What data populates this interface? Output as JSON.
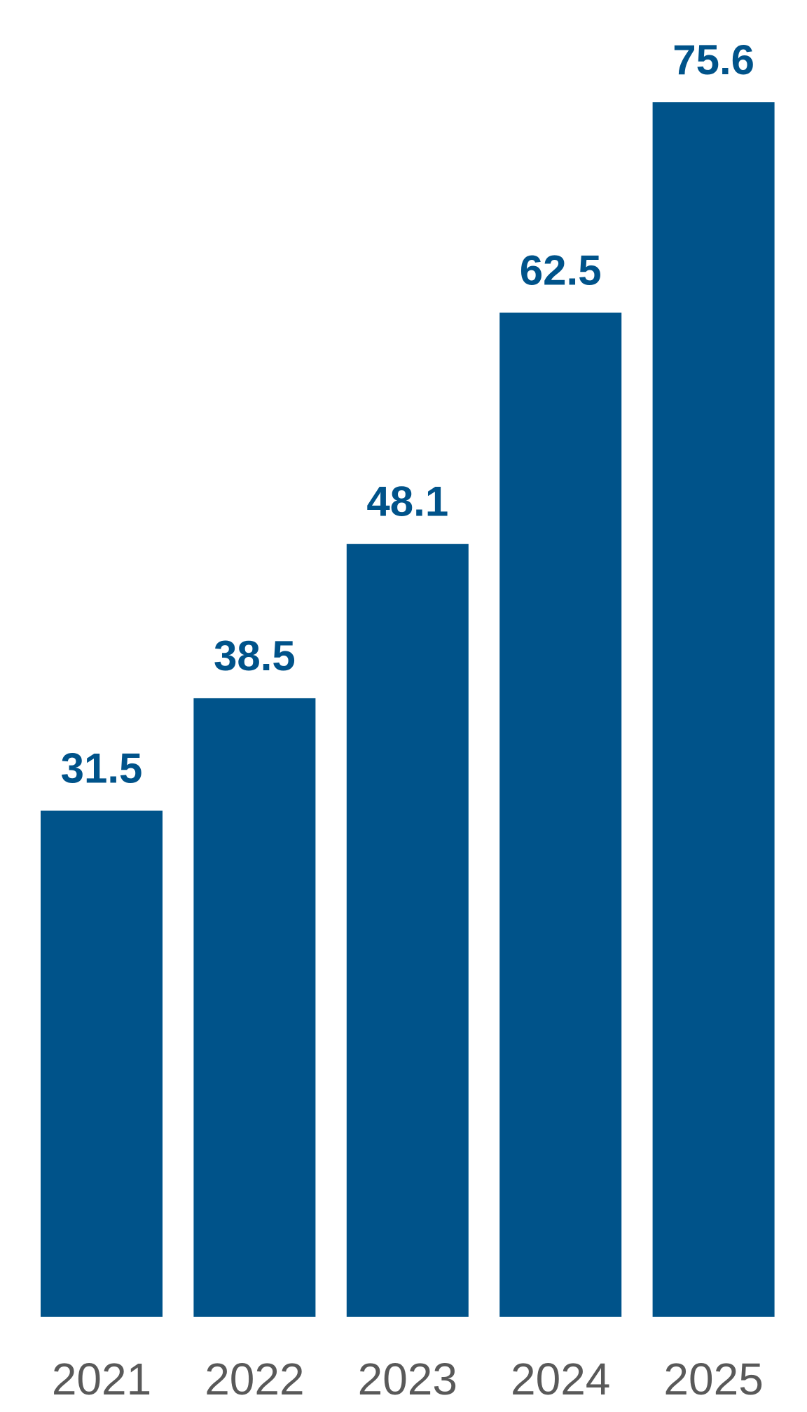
{
  "chart_data": {
    "type": "bar",
    "categories": [
      "2021",
      "2022",
      "2023",
      "2024",
      "2025"
    ],
    "values": [
      31.5,
      38.5,
      48.1,
      62.5,
      75.6
    ],
    "color": "#00538a"
  }
}
